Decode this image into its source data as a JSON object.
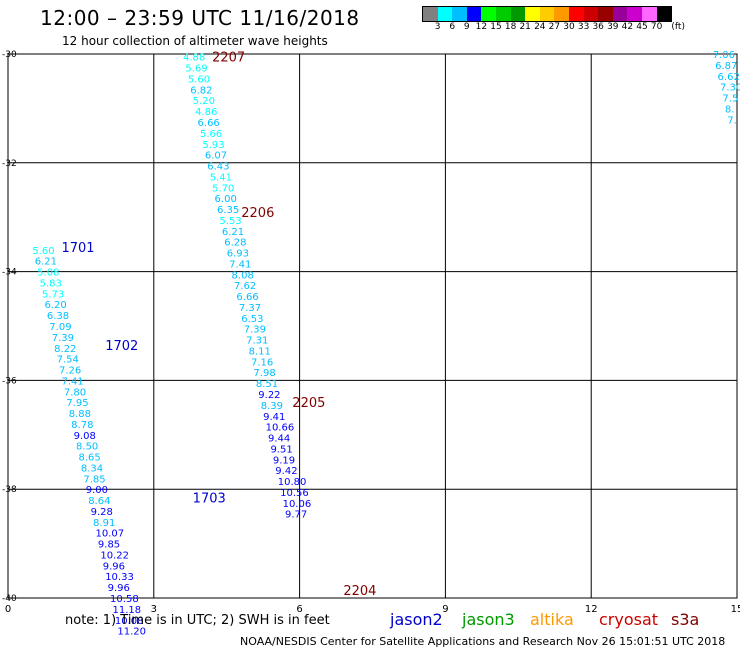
{
  "header": {
    "title": "12:00 – 23:59 UTC 11/16/2018",
    "subtitle": "12 hour collection of altimeter wave heights"
  },
  "colorbar": {
    "unit": "(ft)",
    "colors": [
      "#808080",
      "#00ffff",
      "#00bfff",
      "#0000ff",
      "#00ff00",
      "#00cc00",
      "#009900",
      "#ffff00",
      "#ffcc00",
      "#ff9900",
      "#ff0000",
      "#cc0000",
      "#990000",
      "#990099",
      "#cc00cc",
      "#ff66ff",
      "#000000"
    ],
    "labels": [
      "3",
      "6",
      "9",
      "12",
      "15",
      "18",
      "21",
      "24",
      "27",
      "30",
      "33",
      "36",
      "39",
      "42",
      "45",
      "70"
    ]
  },
  "note": "note: 1) Time is in UTC; 2) SWH is in feet",
  "legend": [
    {
      "label": "jason2",
      "color": "#0000cc"
    },
    {
      "label": "jason3",
      "color": "#009900"
    },
    {
      "label": "altika",
      "color": "#ff9900"
    },
    {
      "label": "cryosat",
      "color": "#cc0000"
    },
    {
      "label": "s3a",
      "color": "#800000"
    }
  ],
  "footer": "NOAA/NESDIS Center for Satellite Applications and Research   Nov 26 15:01:51 UTC 2018",
  "chart_data": {
    "type": "scatter",
    "title": "12:00 – 23:59 UTC 11/16/2018",
    "xlim": [
      0,
      15
    ],
    "ylim": [
      -40,
      -30
    ],
    "xticks": [
      0,
      3,
      6,
      9,
      12,
      15
    ],
    "xtick_labels": [
      "0",
      "3",
      "6",
      "9",
      "12",
      "15"
    ],
    "yticks": [
      -30,
      -32,
      -34,
      -36,
      -38,
      -40
    ],
    "ytick_labels": [
      "-30",
      "-32",
      "-34",
      "-36",
      "-38",
      "-40"
    ],
    "pass_labels": [
      {
        "label": "2207",
        "x": 4.2,
        "y": -30.05,
        "color": "#800000"
      },
      {
        "label": "2206",
        "x": 4.8,
        "y": -32.9,
        "color": "#800000"
      },
      {
        "label": "1701",
        "x": 1.1,
        "y": -33.55,
        "color": "#0000cc"
      },
      {
        "label": "1702",
        "x": 2.0,
        "y": -35.35,
        "color": "#0000cc"
      },
      {
        "label": "2205",
        "x": 5.85,
        "y": -36.4,
        "color": "#800000"
      },
      {
        "label": "1703",
        "x": 3.8,
        "y": -38.15,
        "color": "#0000cc"
      },
      {
        "label": "2204",
        "x": 6.9,
        "y": -39.85,
        "color": "#800000"
      }
    ],
    "series": [
      {
        "x0": 3.6,
        "y0": -30.05,
        "dx": 0.05,
        "dy": -0.2,
        "values": [
          "4.88",
          "5.69",
          "5.60",
          "6.82",
          "5.20",
          "4.86",
          "6.66",
          "5.66",
          "5.93",
          "6.07",
          "6.43",
          "5.41",
          "5.70",
          "6.00",
          "6.35",
          "5.53",
          "6.21",
          "6.28",
          "6.93",
          "7.41",
          "8.08",
          "7.62",
          "6.66",
          "7.37",
          "6.53",
          "7.39",
          "7.31",
          "8.11",
          "7.16",
          "7.98",
          "8.51",
          "9.22",
          "8.39",
          "9.41",
          "10.66",
          "9.44",
          "9.51",
          "9.19",
          "9.42",
          "10.80",
          "10.56",
          "10.06",
          "9.77"
        ]
      },
      {
        "x0": 0.5,
        "y0": -33.6,
        "dx": 0.05,
        "dy": -0.2,
        "values": [
          "5.60",
          "6.21",
          "5.08",
          "5.83",
          "5.73",
          "6.20",
          "6.38",
          "7.09",
          "7.39",
          "8.22",
          "7.54",
          "7.26",
          "7.41",
          "7.80",
          "7.95",
          "8.88",
          "8.78",
          "9.08",
          "8.50",
          "8.65",
          "8.34",
          "7.85",
          "9.00",
          "8.64",
          "9.28",
          "8.91",
          "10.07",
          "9.85",
          "10.22",
          "9.96",
          "10.33",
          "9.96",
          "10.58",
          "11.18",
          "10.08",
          "11.20"
        ]
      },
      {
        "x0": 14.5,
        "y0": -30.0,
        "dx": 0.05,
        "dy": -0.2,
        "values": [
          "7.06",
          "6.87",
          "6.62",
          "7.30",
          "7.5",
          "8.",
          "7."
        ]
      }
    ]
  }
}
